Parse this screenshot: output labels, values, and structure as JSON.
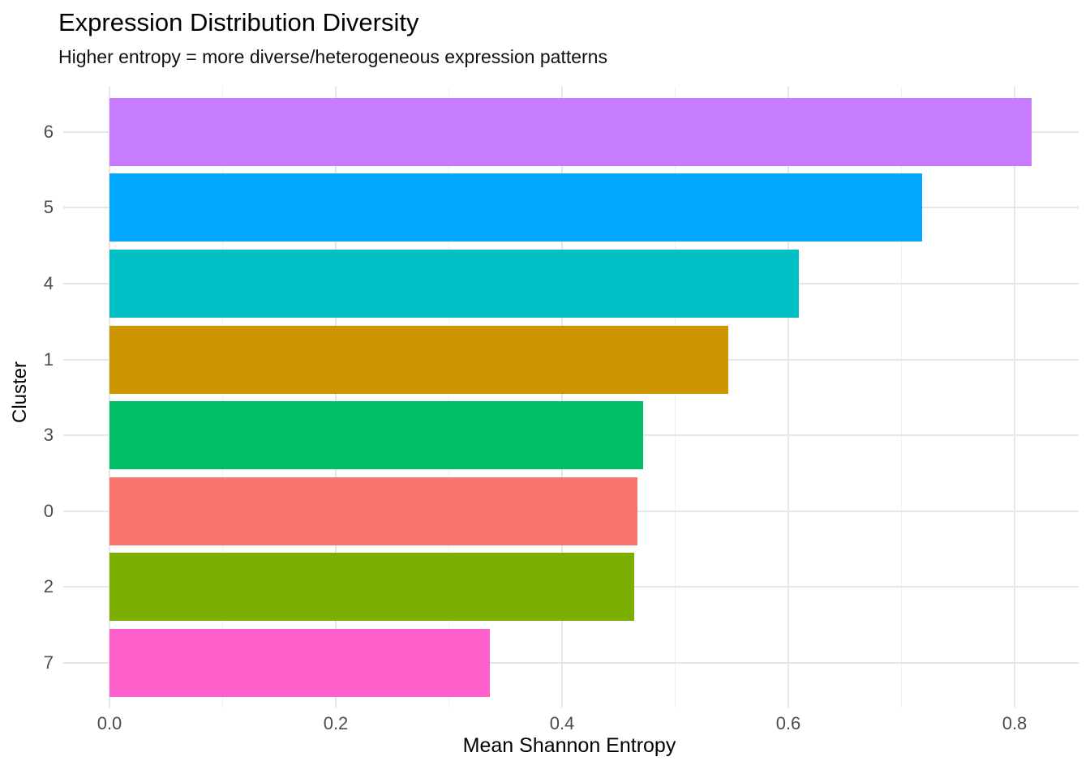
{
  "chart_data": {
    "type": "bar",
    "orientation": "horizontal",
    "title": "Expression Distribution Diversity",
    "subtitle": "Higher entropy = more diverse/heterogeneous expression patterns",
    "xlabel": "Mean Shannon Entropy",
    "ylabel": "Cluster",
    "categories": [
      "6",
      "5",
      "4",
      "1",
      "3",
      "0",
      "2",
      "7"
    ],
    "values": [
      0.815,
      0.718,
      0.609,
      0.547,
      0.472,
      0.467,
      0.464,
      0.336
    ],
    "bar_colors": [
      "#C77CFF",
      "#00A9FF",
      "#00BFC4",
      "#CD9600",
      "#00BE67",
      "#F8766D",
      "#7CAE00",
      "#FF61CC"
    ],
    "xlim": [
      0,
      0.86
    ],
    "x_major_ticks": [
      0,
      0.2,
      0.4,
      0.6,
      0.8
    ],
    "x_tick_labels": [
      "0.0",
      "0.2",
      "0.4",
      "0.6",
      "0.8"
    ],
    "x_minor_ticks": [
      0.1,
      0.3,
      0.5,
      0.7
    ],
    "grid": "on",
    "legend": "none"
  },
  "style": {
    "background": "#FFFFFF",
    "grid_major_color": "#E6E6E6",
    "grid_minor_color": "#F0F0F0",
    "tick_label_color": "#4D4D4D",
    "title_color": "#000000",
    "axis_title_color": "#000000"
  }
}
